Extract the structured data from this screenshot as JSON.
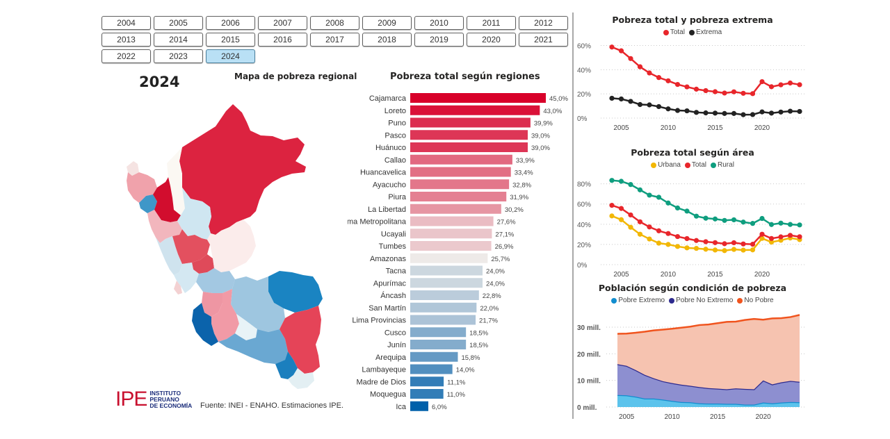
{
  "year_slicer": {
    "years": [
      "2004",
      "2005",
      "2006",
      "2007",
      "2008",
      "2009",
      "2010",
      "2011",
      "2012",
      "2013",
      "2014",
      "2015",
      "2016",
      "2017",
      "2018",
      "2019",
      "2020",
      "2021",
      "2022",
      "2023",
      "2024"
    ],
    "selected": "2024"
  },
  "header": {
    "selected_year_label": "2024"
  },
  "map": {
    "title": "Mapa de pobreza regional",
    "color_scale": {
      "high": "#d8002a",
      "mid": "#f2eeee",
      "low": "#0060aa"
    }
  },
  "footer": {
    "logo_mark": "IPE",
    "logo_line1": "INSTITUTO",
    "logo_line2": "PERUANO",
    "logo_line3": "DE ECONOMÍA",
    "source": "Fuente: INEI - ENAHO. Estimaciones IPE."
  },
  "chart_data": [
    {
      "id": "regions",
      "type": "bar",
      "orientation": "horizontal",
      "title": "Pobreza total según regiones",
      "categories": [
        "Cajamarca",
        "Loreto",
        "Puno",
        "Pasco",
        "Huánuco",
        "Callao",
        "Huancavelica",
        "Ayacucho",
        "Piura",
        "La Libertad",
        "Lima Metropolitana",
        "Ucayali",
        "Tumbes",
        "Amazonas",
        "Tacna",
        "Apurímac",
        "Áncash",
        "San Martín",
        "Lima Provincias",
        "Cusco",
        "Junín",
        "Arequipa",
        "Lambayeque",
        "Madre de Dios",
        "Moquegua",
        "Ica"
      ],
      "values": [
        45.0,
        43.0,
        39.9,
        39.0,
        39.0,
        33.9,
        33.4,
        32.8,
        31.9,
        30.2,
        27.6,
        27.1,
        26.9,
        25.7,
        24.0,
        24.0,
        22.8,
        22.0,
        21.7,
        18.5,
        18.5,
        15.8,
        14.0,
        11.1,
        11.0,
        6.0
      ],
      "labels": [
        "45,0%",
        "43,0%",
        "39,9%",
        "39,0%",
        "39,0%",
        "33,9%",
        "33,4%",
        "32,8%",
        "31,9%",
        "30,2%",
        "27,6%",
        "27,1%",
        "26,9%",
        "25,7%",
        "24,0%",
        "24,0%",
        "22,8%",
        "22,0%",
        "21,7%",
        "18,5%",
        "18,5%",
        "15,8%",
        "14,0%",
        "11,1%",
        "11,0%",
        "6,0%"
      ],
      "unit": "%",
      "xlim": [
        0,
        45
      ]
    },
    {
      "id": "total_extrema",
      "type": "line",
      "title": "Pobreza total y pobreza extrema",
      "x": [
        2004,
        2005,
        2006,
        2007,
        2008,
        2009,
        2010,
        2011,
        2012,
        2013,
        2014,
        2015,
        2016,
        2017,
        2018,
        2019,
        2020,
        2021,
        2022,
        2023,
        2024
      ],
      "series": [
        {
          "name": "Total",
          "color": "#e8262b",
          "values": [
            58.7,
            55.6,
            49.2,
            42.4,
            37.3,
            33.5,
            30.8,
            27.8,
            25.8,
            23.9,
            22.7,
            21.8,
            20.7,
            21.7,
            20.5,
            20.2,
            30.1,
            25.9,
            27.5,
            29.0,
            27.6
          ]
        },
        {
          "name": "Extrema",
          "color": "#222222",
          "values": [
            16.4,
            15.8,
            13.8,
            11.2,
            10.9,
            9.5,
            7.6,
            6.3,
            6.0,
            4.7,
            4.3,
            4.1,
            3.8,
            3.8,
            2.8,
            2.9,
            5.1,
            4.1,
            5.0,
            5.7,
            5.5
          ]
        }
      ],
      "yticks": [
        0,
        20,
        40,
        60
      ],
      "ytick_labels": [
        "0%",
        "20%",
        "40%",
        "60%"
      ],
      "xticks": [
        2005,
        2010,
        2015,
        2020
      ],
      "xtick_labels": [
        "2005",
        "2010",
        "2015",
        "2020"
      ],
      "ylim": [
        0,
        62
      ],
      "legend": "top-center",
      "grid": true
    },
    {
      "id": "area",
      "type": "line",
      "title": "Pobreza total según área",
      "x": [
        2004,
        2005,
        2006,
        2007,
        2008,
        2009,
        2010,
        2011,
        2012,
        2013,
        2014,
        2015,
        2016,
        2017,
        2018,
        2019,
        2020,
        2021,
        2022,
        2023,
        2024
      ],
      "series": [
        {
          "name": "Urbana",
          "color": "#f2b705",
          "values": [
            48.2,
            44.5,
            37.0,
            30.1,
            25.4,
            21.3,
            20.0,
            18.0,
            16.6,
            16.1,
            15.3,
            14.5,
            13.9,
            15.1,
            14.4,
            14.6,
            26.0,
            22.3,
            24.1,
            26.4,
            24.8
          ]
        },
        {
          "name": "Total",
          "color": "#e8262b",
          "values": [
            58.7,
            55.6,
            49.2,
            42.4,
            37.3,
            33.5,
            30.8,
            27.8,
            25.8,
            23.9,
            22.7,
            21.8,
            20.7,
            21.7,
            20.5,
            20.2,
            30.1,
            25.9,
            27.5,
            29.0,
            27.6
          ]
        },
        {
          "name": "Rural",
          "color": "#0f9e7f",
          "values": [
            83.4,
            82.5,
            79.3,
            74.0,
            68.8,
            66.7,
            61.0,
            56.1,
            53.0,
            48.0,
            46.0,
            45.2,
            43.8,
            44.4,
            42.1,
            40.8,
            45.7,
            39.7,
            41.1,
            39.8,
            39.3
          ]
        }
      ],
      "yticks": [
        0,
        20,
        40,
        60,
        80
      ],
      "ytick_labels": [
        "0%",
        "20%",
        "40%",
        "60%",
        "80%"
      ],
      "xticks": [
        2005,
        2010,
        2015,
        2020
      ],
      "xtick_labels": [
        "2005",
        "2010",
        "2015",
        "2020"
      ],
      "ylim": [
        0,
        88
      ],
      "legend": "top-center",
      "grid": true
    },
    {
      "id": "population",
      "type": "area",
      "stacked": true,
      "title": "Población según condición de pobreza",
      "x": [
        2004,
        2005,
        2006,
        2007,
        2008,
        2009,
        2010,
        2011,
        2012,
        2013,
        2014,
        2015,
        2016,
        2017,
        2018,
        2019,
        2020,
        2021,
        2022,
        2023,
        2024
      ],
      "series": [
        {
          "name": "Pobre Extremo",
          "color": "#118dcf",
          "fill": "#5cc3ec",
          "values": [
            4.5,
            4.4,
            3.9,
            3.2,
            3.2,
            2.8,
            2.3,
            1.9,
            1.8,
            1.4,
            1.3,
            1.3,
            1.2,
            1.2,
            0.9,
            0.9,
            1.7,
            1.4,
            1.7,
            1.9,
            1.8
          ]
        },
        {
          "name": "Pobre No Extremo",
          "color": "#2d2a8e",
          "fill": "#8d8fd0",
          "values": [
            11.6,
            11.1,
            10.0,
            8.9,
            7.6,
            6.9,
            6.7,
            6.5,
            6.2,
            6.1,
            5.8,
            5.6,
            5.5,
            5.8,
            5.9,
            5.8,
            8.3,
            7.1,
            7.6,
            7.9,
            7.7
          ]
        },
        {
          "name": "No Pobre",
          "color": "#f0541e",
          "fill": "#f6c3b0",
          "values": [
            11.4,
            12.1,
            14.0,
            16.2,
            18.0,
            19.4,
            20.4,
            21.4,
            22.2,
            23.3,
            23.9,
            24.6,
            25.3,
            25.1,
            25.9,
            26.4,
            22.8,
            24.8,
            24.1,
            24.0,
            25.1
          ]
        }
      ],
      "yticks": [
        0,
        10,
        20,
        30
      ],
      "ytick_labels": [
        "0 mill.",
        "10 mill.",
        "20 mill.",
        "30 mill."
      ],
      "xticks": [
        2005,
        2010,
        2015,
        2020
      ],
      "xtick_labels": [
        "2005",
        "2010",
        "2015",
        "2020"
      ],
      "ylim": [
        0,
        36
      ],
      "legend": "top-center",
      "grid": true
    }
  ]
}
